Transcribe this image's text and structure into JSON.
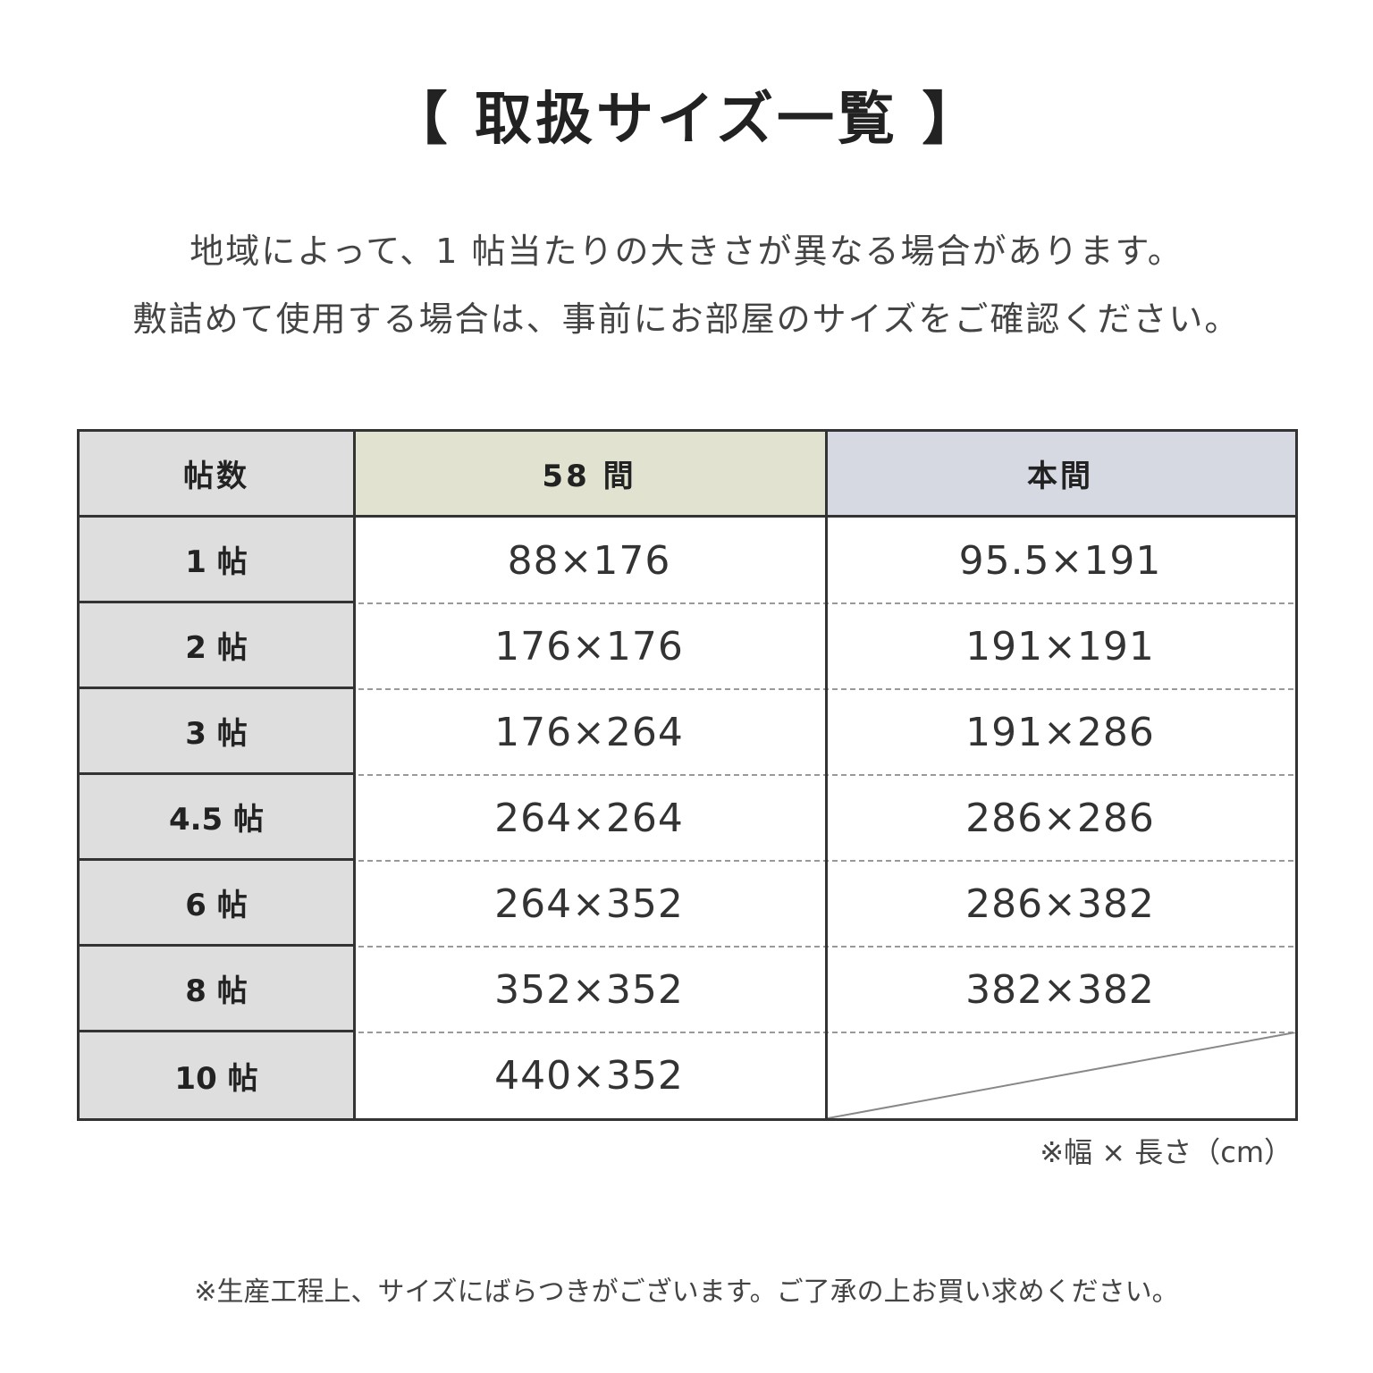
{
  "title": "【 取扱サイズ一覧 】",
  "intro": [
    "地域によって、1 帖当たりの大きさが異なる場合があります。",
    "敷詰めて使用する場合は、事前にお部屋のサイズをご確認ください。"
  ],
  "table": {
    "headers": [
      "帖数",
      "58 間",
      "本間"
    ],
    "header_colors": [
      "#dedede",
      "#e1e3d0",
      "#d6d9e1"
    ],
    "rows": [
      {
        "label": "1 帖",
        "v58": "88×176",
        "hon": "95.5×191"
      },
      {
        "label": "2 帖",
        "v58": "176×176",
        "hon": "191×191"
      },
      {
        "label": "3 帖",
        "v58": "176×264",
        "hon": "191×286"
      },
      {
        "label": "4.5 帖",
        "v58": "264×264",
        "hon": "286×286"
      },
      {
        "label": "6 帖",
        "v58": "264×352",
        "hon": "286×382"
      },
      {
        "label": "8 帖",
        "v58": "352×352",
        "hon": "382×382"
      },
      {
        "label": "10 帖",
        "v58": "440×352",
        "hon": ""
      }
    ]
  },
  "unit_note": "※幅 × 長さ（cm）",
  "footer_note": "※生産工程上、サイズにばらつきがございます。ご了承の上お買い求めください。"
}
